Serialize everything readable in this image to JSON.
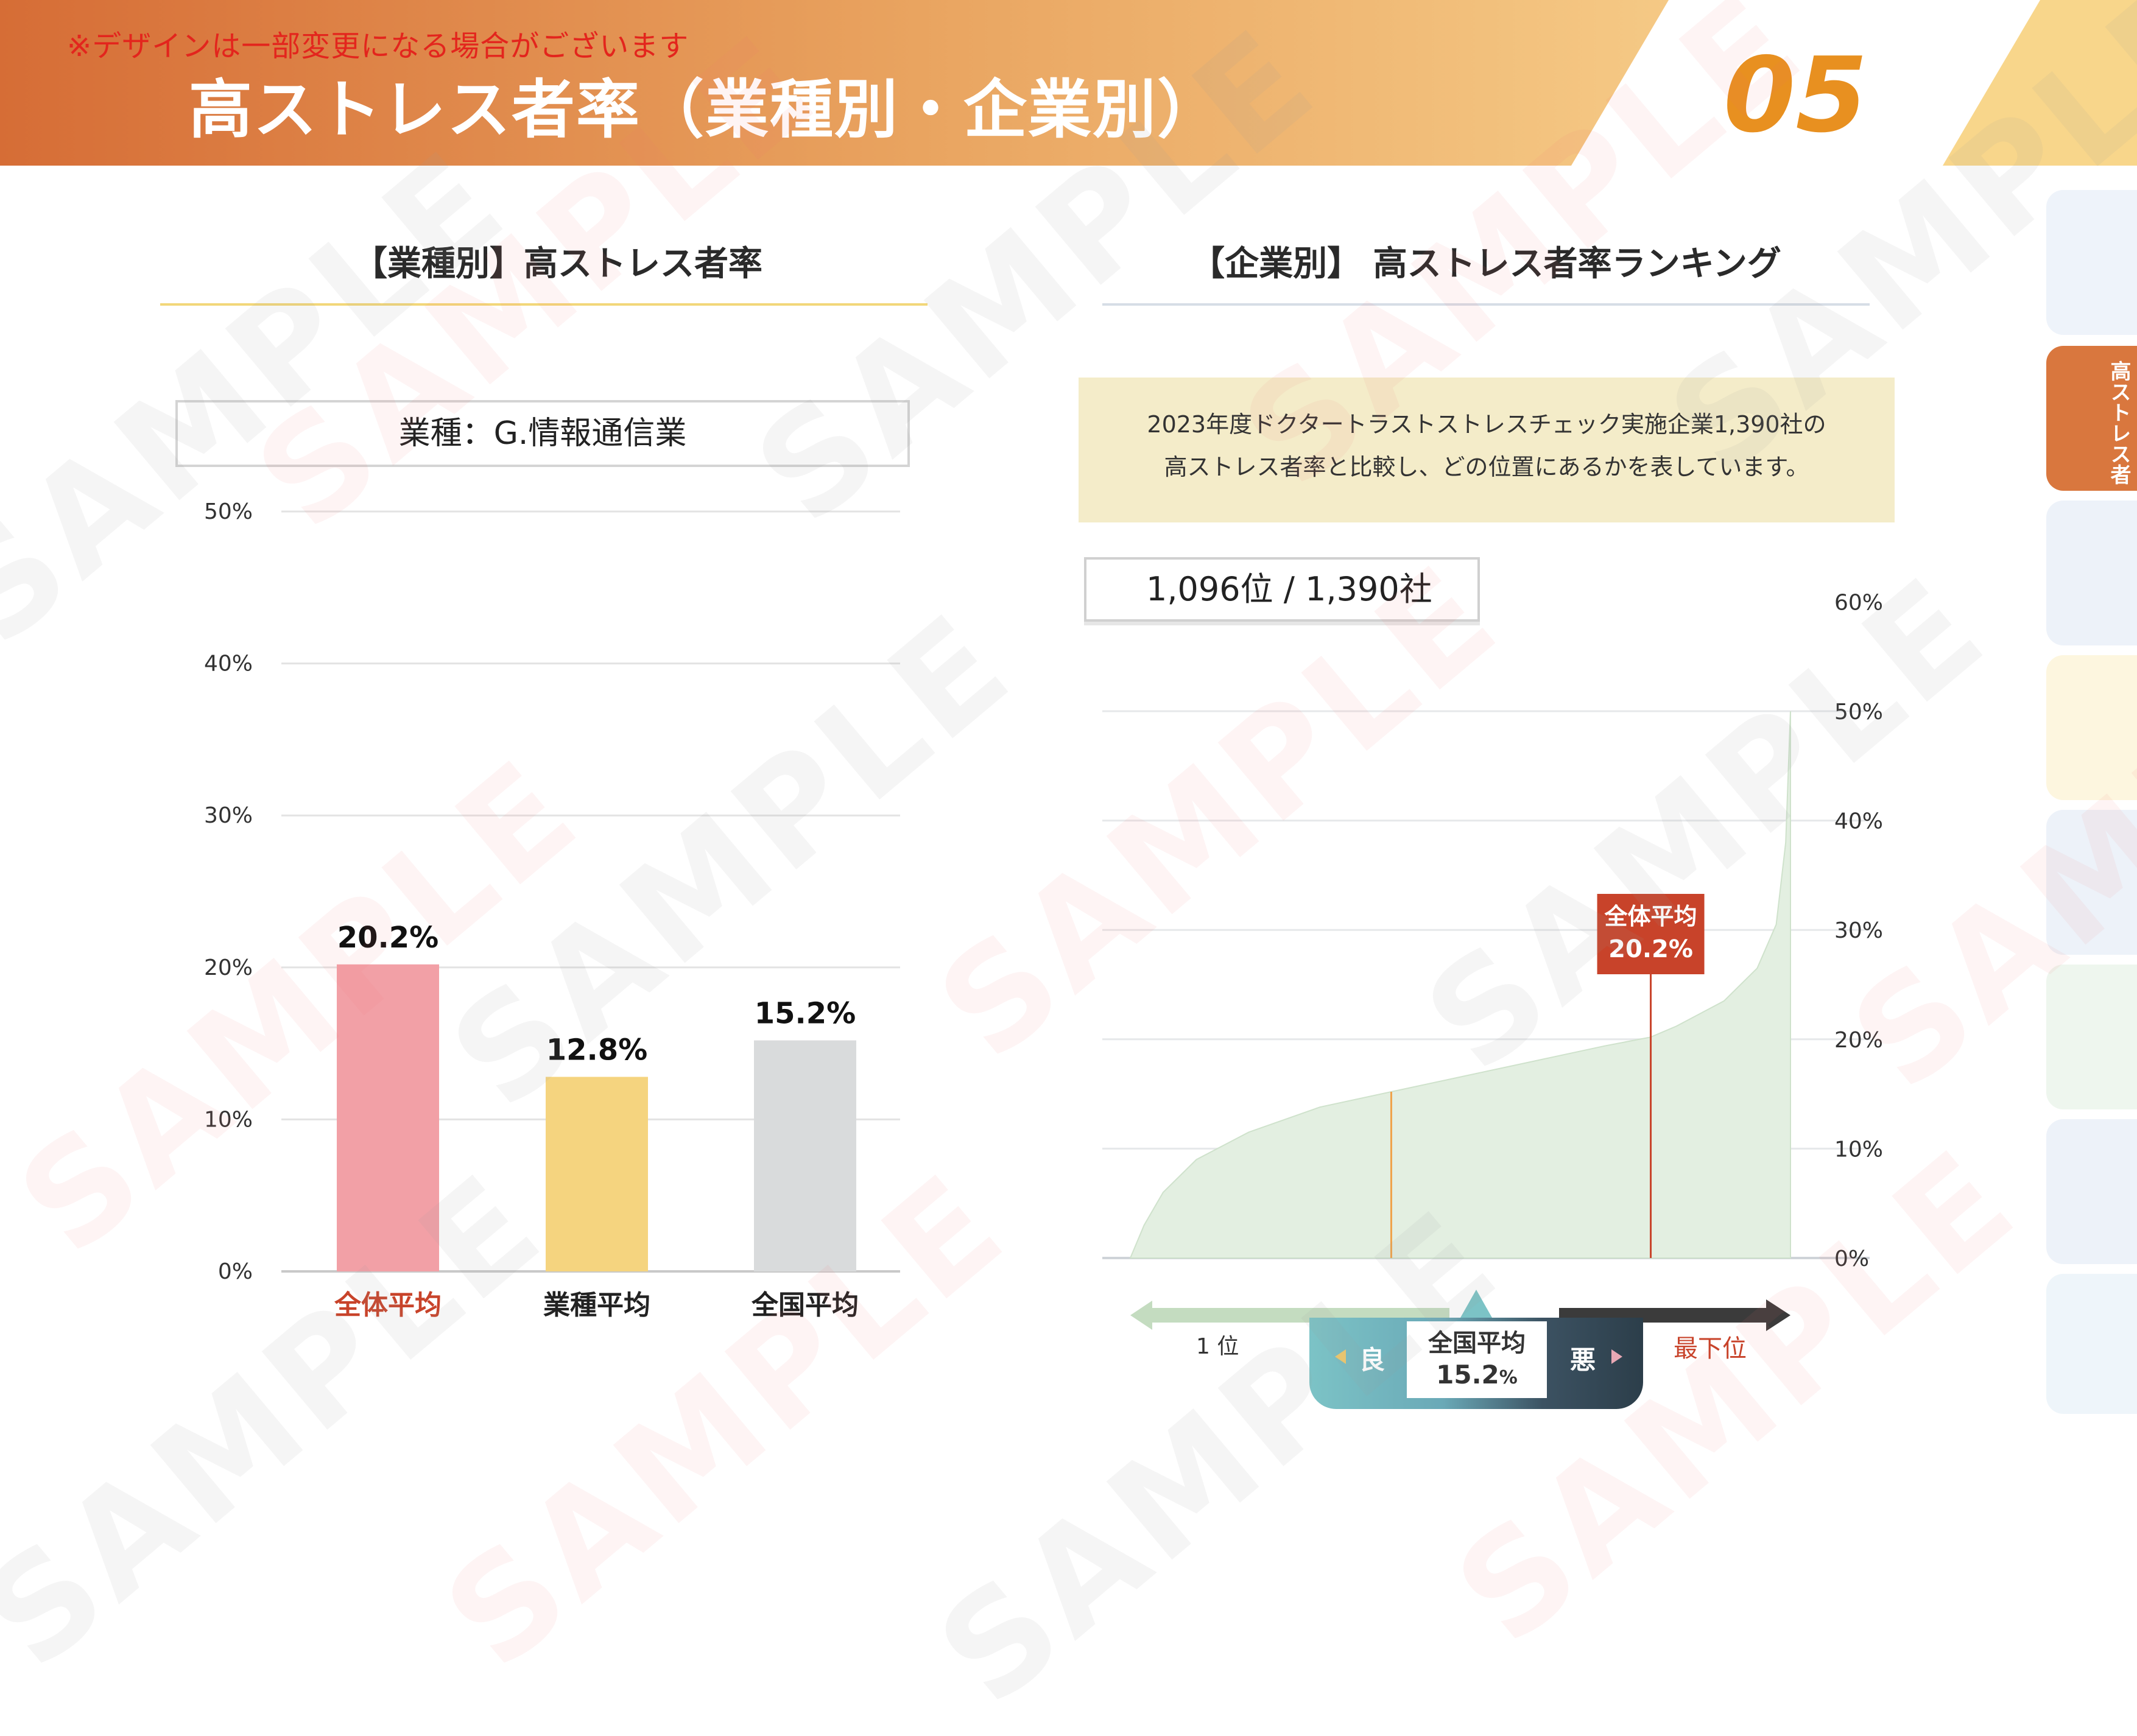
{
  "header": {
    "notice": "※デザインは一部変更になる場合がございます",
    "title": "高ストレス者率（業種別・企業別）",
    "page_number": "05"
  },
  "left": {
    "section_title": "【業種別】高ストレス者率",
    "industry_label": "業種：G.情報通信業"
  },
  "right": {
    "section_title": "【企業別】 高ストレス者率ランキング",
    "description_line1": "2023年度ドクタートラストストレスチェック実施企業1,390社の",
    "description_line2": "高ストレス者率と比較し、どの位置にあるかを表しています。",
    "rank_text": "1,096位 / 1,390社",
    "axis_first": "1 位",
    "axis_last": "最下位",
    "legend_good": "良",
    "legend_bad": "悪",
    "national_label": "全国平均",
    "national_value": "15.2",
    "national_unit": "%"
  },
  "side_tab": {
    "active_label": "高ストレス者"
  },
  "watermark": "SAMPLE",
  "colors": {
    "header_start": "#d9703a",
    "header_end": "#f2c07f",
    "accent_red": "#c8432a",
    "bar_overall": "#f2a0a6",
    "bar_industry": "#f5d47f",
    "bar_national": "#d9dbdc",
    "area_fill": "#e3efe1",
    "national_line": "#f0a24a",
    "overall_line": "#c8432a"
  },
  "chart_data": [
    {
      "type": "bar",
      "categories": [
        "全体平均",
        "業種平均",
        "全国平均"
      ],
      "values": [
        20.2,
        12.8,
        15.2
      ],
      "data_labels": [
        "20.2%",
        "12.8%",
        "15.2%"
      ],
      "yticks": [
        "0%",
        "10%",
        "20%",
        "30%",
        "40%",
        "50%"
      ],
      "ylim": [
        0,
        50
      ],
      "grid": true
    },
    {
      "type": "area",
      "x_count": 1390,
      "x_range": [
        1,
        1390
      ],
      "series": [
        {
          "x": [
            1,
            30,
            70,
            140,
            250,
            400,
            550,
            700,
            850,
            1000,
            1096,
            1150,
            1250,
            1320,
            1360,
            1380,
            1390
          ],
          "values": [
            0,
            3,
            6,
            9,
            11.5,
            13.8,
            15.2,
            16.6,
            18.0,
            19.4,
            20.2,
            21.2,
            23.5,
            26.5,
            30.5,
            38.0,
            50.0
          ]
        }
      ],
      "yticks": [
        "0%",
        "10%",
        "20%",
        "30%",
        "40%",
        "50%",
        "60%"
      ],
      "ylim": [
        0,
        50
      ],
      "markers": [
        {
          "label": "全国平均",
          "value": 15.2,
          "rank": 550
        },
        {
          "label": "全体平均",
          "value": 20.2,
          "rank": 1096,
          "annotation_line1": "全体平均",
          "annotation_line2": "20.2%"
        }
      ],
      "grid": true
    }
  ]
}
